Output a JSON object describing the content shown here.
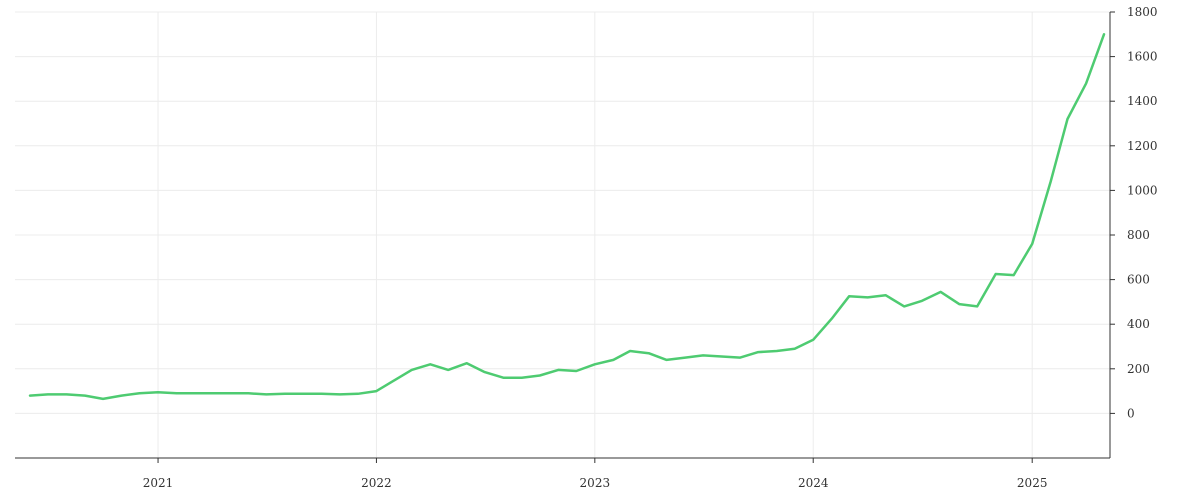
{
  "chart_data": {
    "type": "line",
    "title": "",
    "xlabel": "",
    "ylabel": "",
    "grid": true,
    "ylim": [
      -200,
      1800
    ],
    "xlim": [
      "2020-06-01",
      "2025-05-01"
    ],
    "y_ticks": [
      0,
      200,
      400,
      600,
      800,
      1000,
      1200,
      1400,
      1600,
      1800
    ],
    "x_ticks": [
      {
        "date": "2021-01-01",
        "label": "2021"
      },
      {
        "date": "2022-01-01",
        "label": "2022"
      },
      {
        "date": "2023-01-01",
        "label": "2023"
      },
      {
        "date": "2024-01-01",
        "label": "2024"
      },
      {
        "date": "2025-01-01",
        "label": "2025"
      }
    ],
    "y_axis_position": "right",
    "line_color": "#4ecb71",
    "series": [
      {
        "x": [
          "2020-06-01",
          "2020-07-01",
          "2020-08-01",
          "2020-09-01",
          "2020-10-01",
          "2020-11-01",
          "2020-12-01",
          "2021-01-01",
          "2021-02-01",
          "2021-03-01",
          "2021-04-01",
          "2021-05-01",
          "2021-06-01",
          "2021-07-01",
          "2021-08-01",
          "2021-09-01",
          "2021-10-01",
          "2021-11-01",
          "2021-12-01",
          "2022-01-01",
          "2022-02-01",
          "2022-03-01",
          "2022-04-01",
          "2022-05-01",
          "2022-06-01",
          "2022-07-01",
          "2022-08-01",
          "2022-09-01",
          "2022-10-01",
          "2022-11-01",
          "2022-12-01",
          "2023-01-01",
          "2023-02-01",
          "2023-03-01",
          "2023-04-01",
          "2023-05-01",
          "2023-06-01",
          "2023-07-01",
          "2023-08-01",
          "2023-09-01",
          "2023-10-01",
          "2023-11-01",
          "2023-12-01",
          "2024-01-01",
          "2024-02-01",
          "2024-03-01",
          "2024-04-01",
          "2024-05-01",
          "2024-06-01",
          "2024-07-01",
          "2024-08-01",
          "2024-09-01",
          "2024-10-01",
          "2024-11-01",
          "2024-12-01",
          "2025-01-01",
          "2025-02-01",
          "2025-03-01",
          "2025-04-01",
          "2025-05-01"
        ],
        "y": [
          80,
          85,
          85,
          80,
          65,
          80,
          90,
          95,
          90,
          90,
          90,
          90,
          90,
          85,
          88,
          88,
          88,
          85,
          88,
          100,
          150,
          195,
          220,
          195,
          225,
          185,
          160,
          160,
          170,
          195,
          190,
          220,
          240,
          280,
          270,
          240,
          250,
          260,
          255,
          250,
          275,
          280,
          290,
          330,
          425,
          525,
          520,
          530,
          480,
          505,
          545,
          490,
          480,
          625,
          620,
          760,
          1040,
          1320,
          1480,
          1700
        ]
      }
    ]
  }
}
